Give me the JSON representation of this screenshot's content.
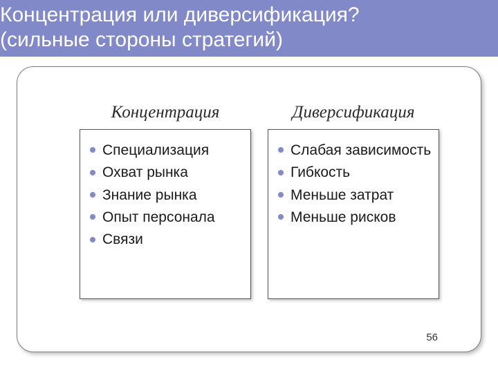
{
  "colors": {
    "accent": "#8289c8",
    "text": "#1a1a1a",
    "frame_border": "#7a7a7a",
    "box_border": "#555555",
    "background": "#ffffff"
  },
  "title": {
    "line1": "Концентрация или диверсификация?",
    "line2": "(сильные стороны стратегий)"
  },
  "columns": {
    "left": {
      "heading": "Концентрация",
      "items": [
        "Специализация",
        "Охват рынка",
        "Знание рынка",
        "Опыт персонала",
        "Связи"
      ]
    },
    "right": {
      "heading": "Диверсификация",
      "items": [
        "Слабая зависимость",
        "Гибкость",
        "Меньше затрат",
        "Меньше рисков"
      ]
    }
  },
  "page_number": "56"
}
